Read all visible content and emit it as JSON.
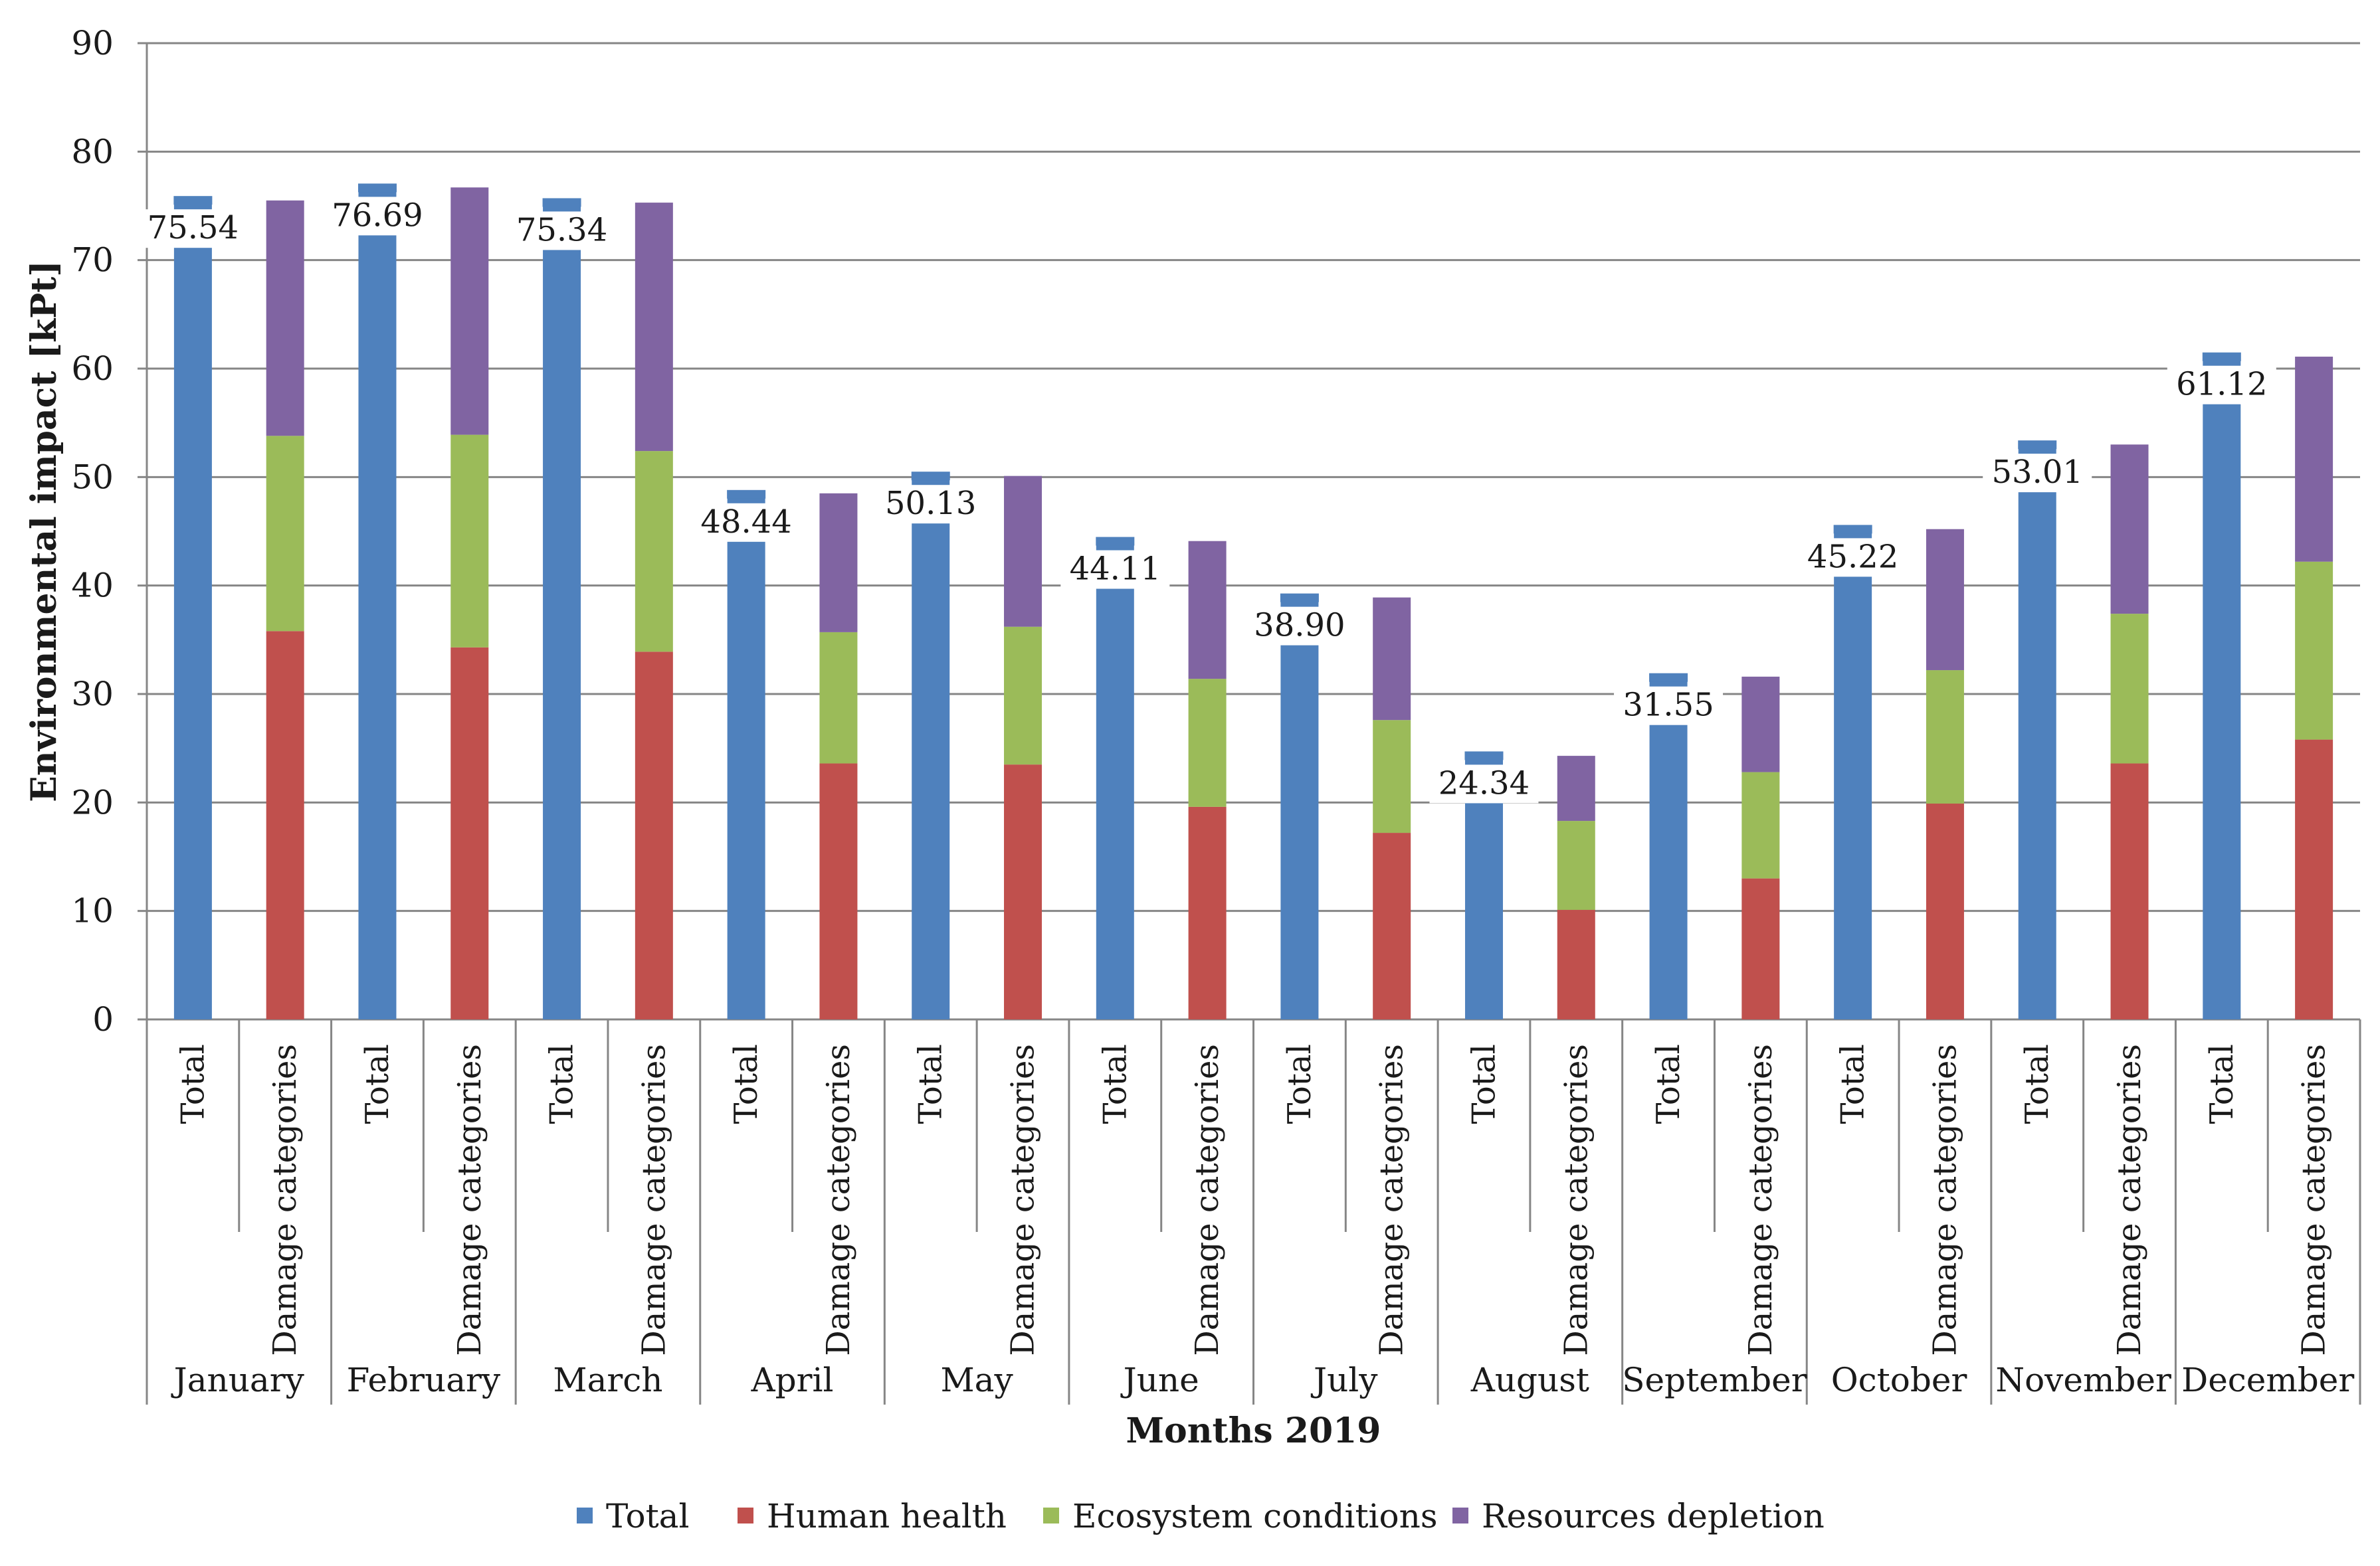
{
  "chart_data": {
    "type": "bar",
    "stacked": true,
    "ylabel": "Environmental impact [kPt]",
    "xlabel": "Months 2019",
    "ylim": [
      0,
      90
    ],
    "yticks": [
      0,
      10,
      20,
      30,
      40,
      50,
      60,
      70,
      80,
      90
    ],
    "grid": true,
    "legend_position": "bottom",
    "bar_labels": [
      "Total",
      "Damage categories"
    ],
    "months": [
      "January",
      "February",
      "March",
      "April",
      "May",
      "June",
      "July",
      "August",
      "September",
      "October",
      "November",
      "December"
    ],
    "totals": [
      75.54,
      76.69,
      75.34,
      48.44,
      50.13,
      44.11,
      38.9,
      24.34,
      31.55,
      45.22,
      53.01,
      61.12
    ],
    "total_labels": [
      "75.54",
      "76.69",
      "75.34",
      "48.44",
      "50.13",
      "44.11",
      "38.90",
      "24.34",
      "31.55",
      "45.22",
      "53.01",
      "61.12"
    ],
    "series": [
      {
        "name": "Total",
        "color": "#4f81bd",
        "values": [
          75.54,
          76.69,
          75.34,
          48.44,
          50.13,
          44.11,
          38.9,
          24.34,
          31.55,
          45.22,
          53.01,
          61.12
        ]
      },
      {
        "name": "Human health",
        "color": "#c0504d",
        "values": [
          35.8,
          34.3,
          33.9,
          23.6,
          23.5,
          19.6,
          17.2,
          10.1,
          13.0,
          19.9,
          23.6,
          25.8
        ]
      },
      {
        "name": "Ecosystem conditions",
        "color": "#9bbb59",
        "values": [
          18.0,
          19.6,
          18.5,
          12.1,
          12.7,
          11.8,
          10.4,
          8.2,
          9.8,
          12.3,
          13.8,
          16.4
        ]
      },
      {
        "name": "Resources depletion",
        "color": "#8064a2",
        "values": [
          21.7,
          22.8,
          22.9,
          12.8,
          13.9,
          12.7,
          11.3,
          6.0,
          8.8,
          13.0,
          15.6,
          18.9
        ]
      }
    ]
  }
}
